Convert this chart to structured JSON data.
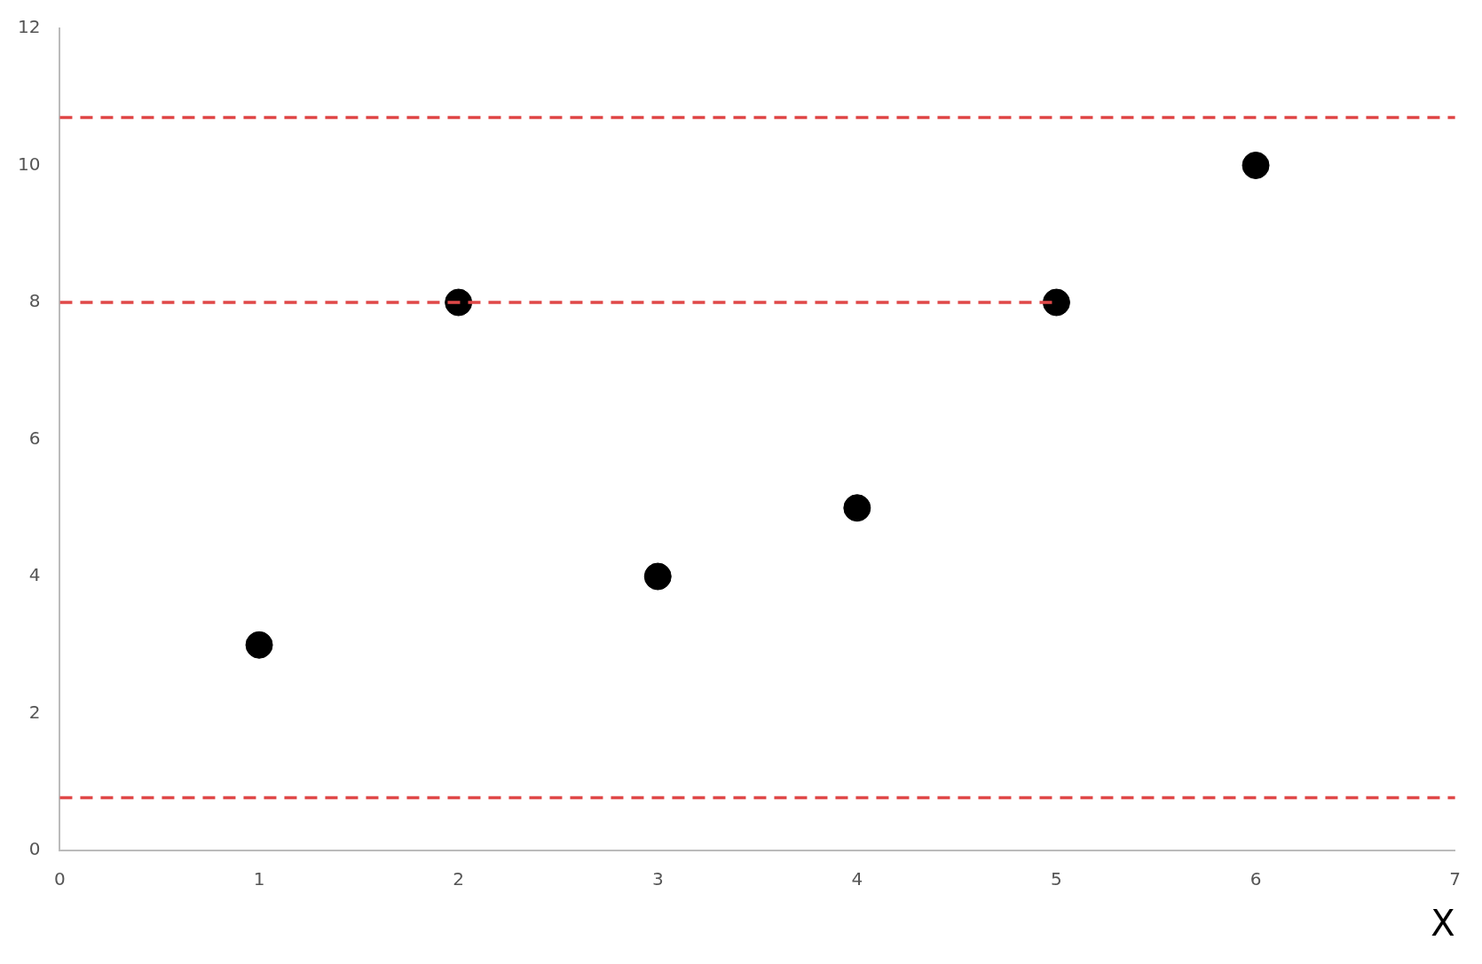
{
  "chart_data": {
    "type": "scatter",
    "xlabel": "X",
    "xlim": [
      0,
      7
    ],
    "ylim": [
      0,
      12
    ],
    "xticks": [
      0,
      1,
      2,
      3,
      4,
      5,
      6,
      7
    ],
    "yticks": [
      0,
      2,
      4,
      6,
      8,
      10,
      12
    ],
    "marker": "circle",
    "series": [
      {
        "type": "scatter",
        "color": "#000000",
        "x": [
          1,
          2,
          3,
          4,
          5,
          6
        ],
        "values": [
          3,
          8,
          4,
          5,
          8,
          10
        ]
      },
      {
        "type": "line",
        "color": "#e04848",
        "x": [
          0,
          5
        ],
        "values": [
          8,
          8
        ],
        "marker": "none",
        "line_style": "dashed"
      }
    ],
    "ref_lines": [
      {
        "axis": "y",
        "value": 10.7,
        "color": "#e04848",
        "line_style": "dashed"
      },
      {
        "axis": "y",
        "value": 0.77,
        "color": "#e04848",
        "line_style": "dashed"
      }
    ]
  }
}
